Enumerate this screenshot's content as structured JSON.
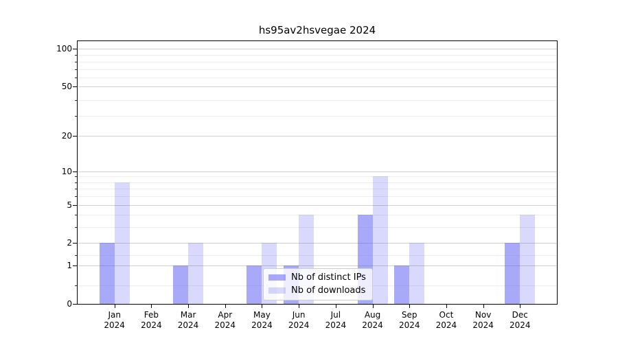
{
  "chart_data": {
    "type": "bar",
    "title": "hs95av2hsvegae 2024",
    "categories": [
      {
        "month": "Jan",
        "year": "2024"
      },
      {
        "month": "Feb",
        "year": "2024"
      },
      {
        "month": "Mar",
        "year": "2024"
      },
      {
        "month": "Apr",
        "year": "2024"
      },
      {
        "month": "May",
        "year": "2024"
      },
      {
        "month": "Jun",
        "year": "2024"
      },
      {
        "month": "Jul",
        "year": "2024"
      },
      {
        "month": "Aug",
        "year": "2024"
      },
      {
        "month": "Sep",
        "year": "2024"
      },
      {
        "month": "Oct",
        "year": "2024"
      },
      {
        "month": "Nov",
        "year": "2024"
      },
      {
        "month": "Dec",
        "year": "2024"
      }
    ],
    "series": [
      {
        "name": "Nb of distinct IPs",
        "color": "#5353f5",
        "alpha": 0.5,
        "values": [
          2,
          0,
          1,
          0,
          1,
          1,
          0,
          4,
          1,
          0,
          0,
          2
        ]
      },
      {
        "name": "Nb of downloads",
        "color": "#5353f5",
        "alpha": 0.22,
        "values": [
          8,
          0,
          2,
          0,
          2,
          4,
          0,
          9,
          2,
          0,
          0,
          4
        ]
      }
    ],
    "yscale": "log1p",
    "ylim": [
      0,
      115
    ],
    "yticks": [
      0,
      1,
      2,
      5,
      10,
      20,
      50,
      100
    ],
    "yticks_minor": [
      0.4,
      1.4,
      3,
      4,
      6,
      7,
      8,
      9,
      29,
      39,
      59,
      69,
      79,
      89
    ],
    "grid": true,
    "legend_position": "lower center"
  },
  "colors": {
    "background": "#ffffff",
    "spine": "#000000",
    "grid_major": "#cfcfcf",
    "grid_minor": "#ededed",
    "legend_border": "#cccccc",
    "bar_dark_rendered": "#a9a9fa",
    "bar_light_rendered": "#dadafa"
  }
}
